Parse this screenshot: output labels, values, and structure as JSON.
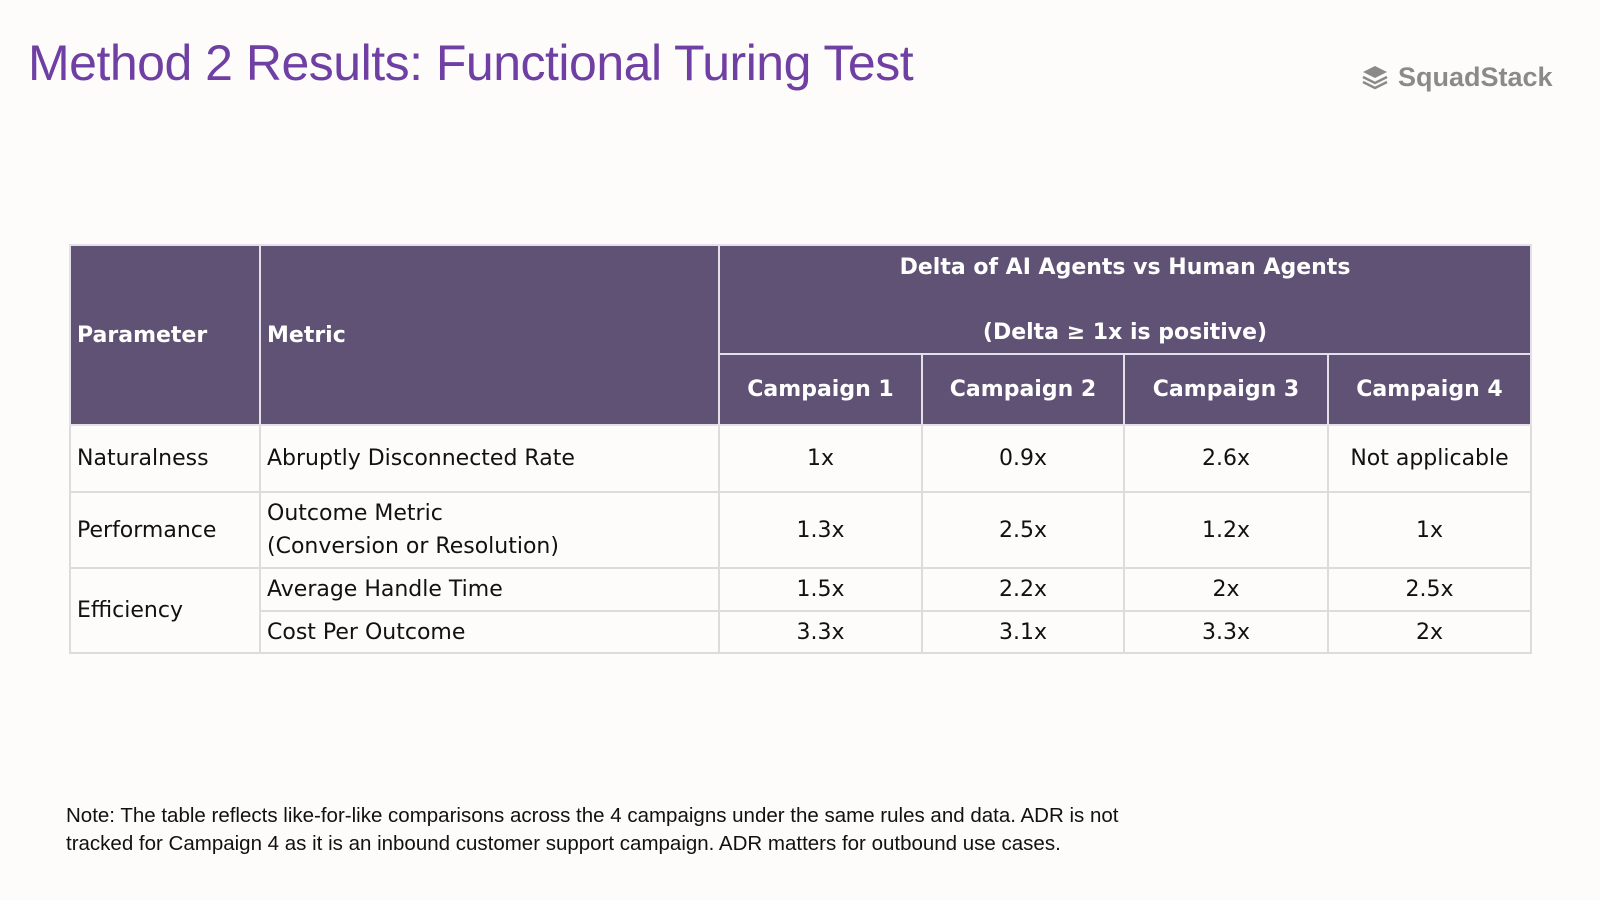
{
  "header": {
    "title": "Method 2 Results: Functional Turing Test",
    "logo": "SquadStack"
  },
  "table": {
    "columns": {
      "parameter": "Parameter",
      "metric": "Metric",
      "group": [
        "Delta of AI Agents vs Human Agents",
        "(Delta ≥ 1x is positive)"
      ],
      "campaigns": [
        "Campaign 1",
        "Campaign 2",
        "Campaign 3",
        "Campaign 4"
      ]
    },
    "rows": [
      {
        "parameter": "Naturalness",
        "metrics": [
          {
            "metric": [
              "Abruptly Disconnected Rate"
            ],
            "values": [
              "1x",
              "0.9x",
              "2.6x",
              "Not applicable"
            ]
          }
        ]
      },
      {
        "parameter": "Performance",
        "metrics": [
          {
            "metric": [
              "Outcome Metric",
              "(Conversion or Resolution)"
            ],
            "values": [
              "1.3x",
              "2.5x",
              "1.2x",
              "1x"
            ]
          }
        ]
      },
      {
        "parameter": "Efficiency",
        "metrics": [
          {
            "metric": [
              "Average Handle Time"
            ],
            "values": [
              "1.5x",
              "2.2x",
              "2x",
              "2.5x"
            ]
          },
          {
            "metric": [
              "Cost Per Outcome"
            ],
            "values": [
              "3.3x",
              "3.1x",
              "3.3x",
              "2x"
            ]
          }
        ]
      }
    ]
  },
  "note": [
    "Note: The table reflects like-for-like comparisons across the 4 campaigns under the same rules and data. ADR is not",
    "tracked for Campaign 4 as it is an inbound customer support campaign. ADR matters for outbound use cases."
  ]
}
